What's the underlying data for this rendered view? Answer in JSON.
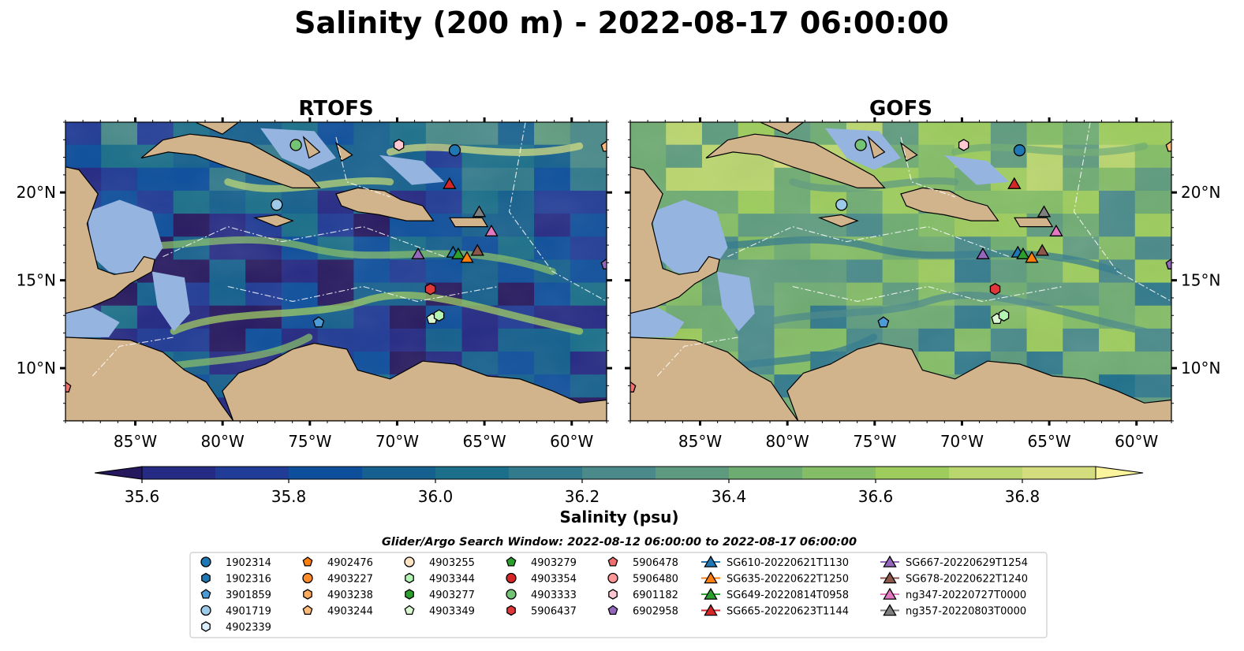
{
  "title": "Salinity (200 m) - 2022-08-17 06:00:00",
  "colors": {
    "land": "#d2b48c",
    "shallow": "#95b4e0",
    "colormap": [
      "#26185f",
      "#252a84",
      "#213c96",
      "#0e4f9c",
      "#15608e",
      "#1b6f8a",
      "#327a8c",
      "#4a8a8a",
      "#5e9b7e",
      "#6fac72",
      "#84bd66",
      "#9dcc5d",
      "#bad66f",
      "#d3dd7d",
      "#faf49c"
    ]
  },
  "chart_data": {
    "type": "heatmap",
    "title": "Salinity (200 m) - 2022-08-17 06:00:00",
    "panels": [
      {
        "title": "RTOFS",
        "variant": "rtofs"
      },
      {
        "title": "GOFS",
        "variant": "gofs"
      }
    ],
    "lon_range": [
      -89,
      -58
    ],
    "lat_range": [
      7,
      24
    ],
    "xticks": [
      -85,
      -80,
      -75,
      -70,
      -65,
      -60
    ],
    "xtick_labels": [
      "85°W",
      "80°W",
      "75°W",
      "70°W",
      "65°W",
      "60°W"
    ],
    "yticks": [
      10,
      15,
      20
    ],
    "ytick_labels": [
      "10°N",
      "15°N",
      "20°N"
    ],
    "colorbar": {
      "label": "Salinity (psu)",
      "range": [
        35.5,
        37.0
      ],
      "step": 0.1,
      "ticks": [
        35.6,
        35.8,
        36.0,
        36.2,
        36.4,
        36.6,
        36.8
      ],
      "tick_labels": [
        "35.6",
        "35.8",
        "36.0",
        "36.2",
        "36.4",
        "36.6",
        "36.8"
      ],
      "extend": "both"
    },
    "legend": {
      "title": "Glider/Argo Search Window: 2022-08-12 06:00:00 to 2022-08-17 06:00:00",
      "entries": [
        {
          "label": "1902314",
          "marker": "circle",
          "color": "#1f77b4"
        },
        {
          "label": "1902316",
          "marker": "hexagon",
          "color": "#1f77b4"
        },
        {
          "label": "3901859",
          "marker": "pentagon",
          "color": "#4c9ad6"
        },
        {
          "label": "4901719",
          "marker": "circle",
          "color": "#9ecae9"
        },
        {
          "label": "4902339",
          "marker": "hexagon",
          "color": "#dcefff"
        },
        {
          "label": "4902476",
          "marker": "pentagon",
          "color": "#ff7f0e"
        },
        {
          "label": "4903227",
          "marker": "circle",
          "color": "#ff8c2a"
        },
        {
          "label": "4903238",
          "marker": "hexagon",
          "color": "#ffab5e"
        },
        {
          "label": "4903244",
          "marker": "pentagon",
          "color": "#ffbb78"
        },
        {
          "label": "4903255",
          "marker": "circle",
          "color": "#ffe4c4"
        },
        {
          "label": "4903344",
          "marker": "hexagon",
          "color": "#b3f5b3"
        },
        {
          "label": "4903277",
          "marker": "hexagon",
          "color": "#2ca02c"
        },
        {
          "label": "4903349",
          "marker": "pentagon",
          "color": "#d9f7d0"
        },
        {
          "label": "4903279",
          "marker": "pentagon",
          "color": "#2ca02c"
        },
        {
          "label": "4903354",
          "marker": "circle",
          "color": "#d62728"
        },
        {
          "label": "4903333",
          "marker": "circle",
          "color": "#74c476"
        },
        {
          "label": "5906437",
          "marker": "hexagon",
          "color": "#e0373a"
        },
        {
          "label": "5906478",
          "marker": "pentagon",
          "color": "#f07070"
        },
        {
          "label": "5906480",
          "marker": "circle",
          "color": "#ff9896"
        },
        {
          "label": "6901182",
          "marker": "hexagon",
          "color": "#ffc8d0"
        },
        {
          "label": "6902958",
          "marker": "pentagon",
          "color": "#9467bd"
        },
        {
          "label": "SG610-20220621T1130",
          "marker": "triangle",
          "color": "#1f77b4"
        },
        {
          "label": "SG635-20220622T1250",
          "marker": "triangle",
          "color": "#ff7f0e"
        },
        {
          "label": "SG649-20220814T0958",
          "marker": "triangle",
          "color": "#2ca02c"
        },
        {
          "label": "SG665-20220623T1144",
          "marker": "triangle",
          "color": "#d62728"
        },
        {
          "label": "SG667-20220629T1254",
          "marker": "triangle",
          "color": "#9467bd"
        },
        {
          "label": "SG678-20220622T1240",
          "marker": "triangle",
          "color": "#8c564b"
        },
        {
          "label": "ng347-20220727T0000",
          "marker": "triangle",
          "color": "#e377c2"
        },
        {
          "label": "ng357-20220803T0000",
          "marker": "triangle",
          "color": "#7f7f7f"
        }
      ]
    },
    "observations": [
      {
        "id": "1902314",
        "lon": -66.7,
        "lat": 22.4
      },
      {
        "id": "4901719",
        "lon": -76.9,
        "lat": 19.3
      },
      {
        "id": "4903333",
        "lon": -75.8,
        "lat": 22.7
      },
      {
        "id": "6901182",
        "lon": -69.9,
        "lat": 22.7
      },
      {
        "id": "SG665-20220623T1144",
        "lon": -67.0,
        "lat": 20.5
      },
      {
        "id": "ng357-20220803T0000",
        "lon": -65.3,
        "lat": 18.9
      },
      {
        "id": "ng347-20220727T0000",
        "lon": -64.6,
        "lat": 17.8
      },
      {
        "id": "SG667-20220629T1254",
        "lon": -68.8,
        "lat": 16.5
      },
      {
        "id": "SG610-20220621T1130",
        "lon": -66.8,
        "lat": 16.6
      },
      {
        "id": "SG649-20220814T0958",
        "lon": -66.5,
        "lat": 16.5
      },
      {
        "id": "SG635-20220622T1250",
        "lon": -66.0,
        "lat": 16.3
      },
      {
        "id": "SG678-20220622T1240",
        "lon": -65.4,
        "lat": 16.7
      },
      {
        "id": "5906437",
        "lon": -68.1,
        "lat": 14.5
      },
      {
        "id": "4903349",
        "lon": -68.0,
        "lat": 12.8
      },
      {
        "id": "4903344",
        "lon": -67.6,
        "lat": 13.0
      },
      {
        "id": "3901859",
        "lon": -74.5,
        "lat": 12.6
      },
      {
        "id": "6902958",
        "lon": -58.0,
        "lat": 15.9
      },
      {
        "id": "4903244",
        "lon": -58.0,
        "lat": 22.6
      },
      {
        "id": "5906478",
        "lon": -89.0,
        "lat": 8.9
      }
    ]
  }
}
